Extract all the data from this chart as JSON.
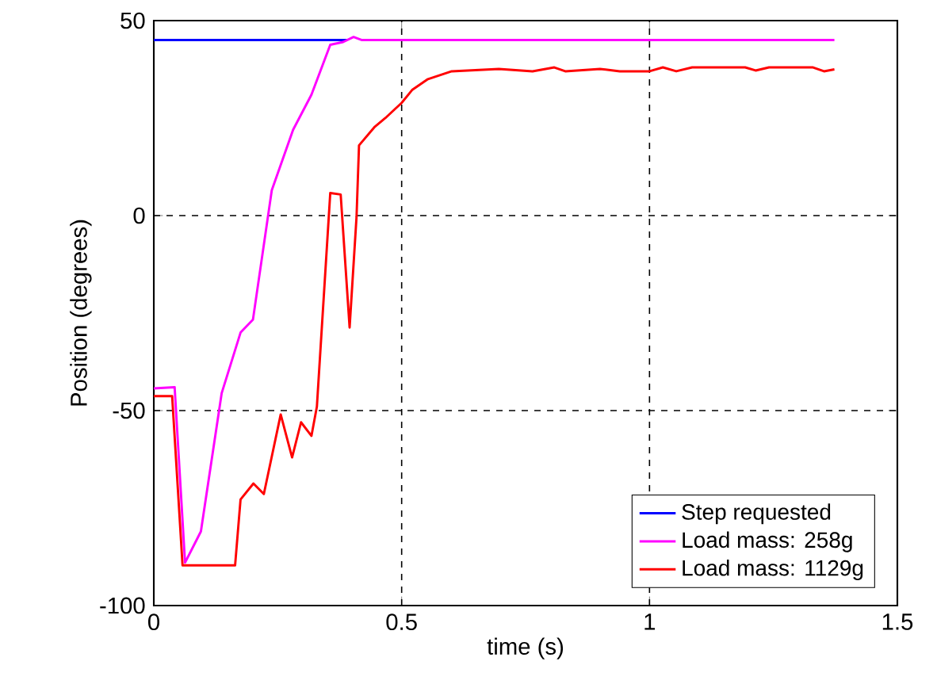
{
  "chart_data": {
    "type": "line",
    "xlabel": "time (s)",
    "ylabel": "Position (degrees)",
    "xlim": [
      0,
      1.5
    ],
    "ylim": [
      -100,
      50
    ],
    "xticks": [
      0,
      0.5,
      1,
      1.5
    ],
    "yticks": [
      -100,
      -50,
      0,
      50
    ],
    "grid": true,
    "legend": "bottom right",
    "marker": "none",
    "line_style": "solid",
    "series": [
      {
        "name": "Step requested",
        "color": "#0000ff",
        "x": [
          0,
          0.39
        ],
        "values": [
          45,
          45
        ]
      },
      {
        "name": "Load mass: 258g",
        "color": "#ff00ff",
        "x": [
          0,
          0.042,
          0.063,
          0.095,
          0.137,
          0.175,
          0.2,
          0.238,
          0.281,
          0.318,
          0.356,
          0.382,
          0.403,
          0.42,
          1.373
        ],
        "values": [
          -44.3,
          -44,
          -89,
          -81,
          -45.5,
          -30,
          -26.7,
          6.5,
          22,
          31,
          43.8,
          44.5,
          45.8,
          45,
          45
        ]
      },
      {
        "name": "Load mass: 1129g",
        "color": "#ff0000",
        "x": [
          0,
          0.037,
          0.058,
          0.164,
          0.175,
          0.201,
          0.222,
          0.256,
          0.279,
          0.297,
          0.318,
          0.329,
          0.356,
          0.377,
          0.395,
          0.409,
          0.414,
          0.446,
          0.467,
          0.5,
          0.521,
          0.553,
          0.601,
          0.696,
          0.764,
          0.808,
          0.83,
          0.9,
          0.94,
          1.0,
          1.027,
          1.054,
          1.086,
          1.193,
          1.214,
          1.241,
          1.33,
          1.352,
          1.373
        ],
        "values": [
          -46.3,
          -46.3,
          -89.7,
          -89.7,
          -72.8,
          -68.7,
          -71.4,
          -51,
          -62,
          -53,
          -56.5,
          -49,
          5.8,
          5.4,
          -28.7,
          -0.3,
          18,
          22.8,
          25,
          28.9,
          32.2,
          35,
          37,
          37.6,
          37,
          38,
          37,
          37.6,
          37,
          37,
          38,
          37,
          38,
          38,
          37.2,
          38,
          38,
          37,
          37.5
        ]
      }
    ]
  }
}
